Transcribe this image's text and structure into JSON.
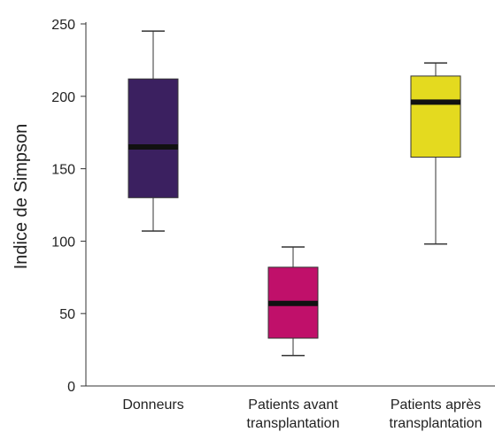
{
  "chart_data": {
    "type": "box",
    "ylabel": "Indice de Simpson",
    "xlabel": "",
    "ylim": [
      0,
      250
    ],
    "yticks": [
      0,
      50,
      100,
      150,
      200,
      250
    ],
    "grid": false,
    "categories": [
      {
        "label_lines": [
          "Donneurs"
        ],
        "color": "#3b2060"
      },
      {
        "label_lines": [
          "Patients avant",
          "transplantation"
        ],
        "color": "#c0106a"
      },
      {
        "label_lines": [
          "Patients après",
          "transplantation"
        ],
        "color": "#e4da1f"
      }
    ],
    "boxes": [
      {
        "min": 107,
        "q1": 130,
        "median": 165,
        "q3": 212,
        "max": 245
      },
      {
        "min": 21,
        "q1": 33,
        "median": 57,
        "q3": 82,
        "max": 96
      },
      {
        "min": 98,
        "q1": 158,
        "median": 196,
        "q3": 214,
        "max": 223
      }
    ]
  }
}
